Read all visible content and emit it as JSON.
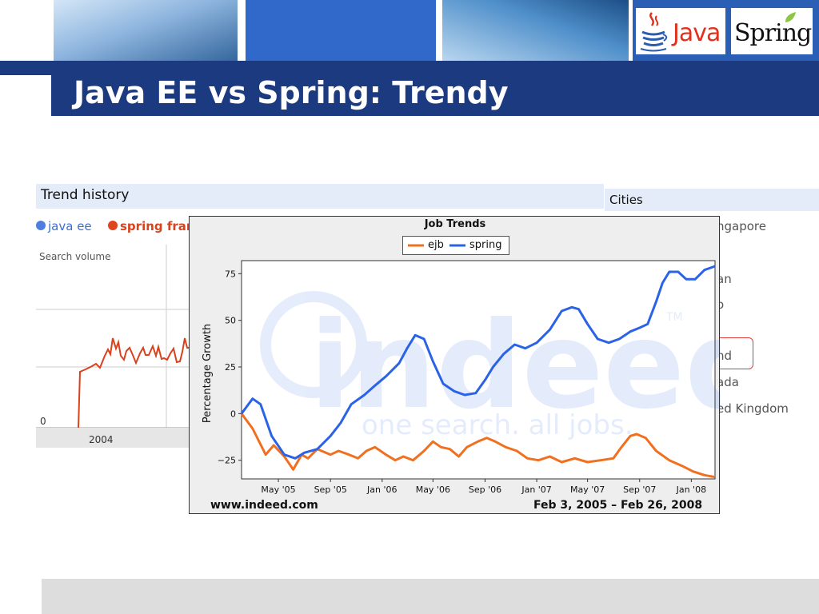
{
  "slide": {
    "title": "Java EE vs Spring: Trendy",
    "logos": {
      "java": "Java",
      "spring": "Spring"
    },
    "colors": {
      "title_bar": "#1c3a80",
      "accent_blue": "#3069c9",
      "footer": "#dddddd"
    }
  },
  "google_trends": {
    "header": "Trend history",
    "legend": [
      {
        "label": "java ee",
        "color": "#4c7fe0"
      },
      {
        "label": "spring fram",
        "color": "#e0451d"
      }
    ],
    "search_volume_label": "Search volume",
    "zero_label": "0",
    "year_label": "2004"
  },
  "cities_panel": {
    "header": "Cities",
    "visible_fragments": [
      "ngapore",
      "an",
      "o",
      "nd",
      "ada",
      "ed Kingdom"
    ]
  },
  "chart_data": {
    "type": "line",
    "title": "Job Trends",
    "xlabel": "",
    "ylabel": "Percentage Growth",
    "ylim": [
      -35,
      82
    ],
    "yticks": [
      75,
      50,
      25,
      0,
      -25
    ],
    "x_tick_labels": [
      "May '05",
      "Sep '05",
      "Jan '06",
      "May '06",
      "Sep '06",
      "Jan '07",
      "May '07",
      "Sep '07",
      "Jan '08"
    ],
    "x_tick_dates": [
      "2005-05-01",
      "2005-09-01",
      "2006-01-01",
      "2006-05-01",
      "2006-09-01",
      "2007-01-01",
      "2007-05-01",
      "2007-09-01",
      "2008-01-01"
    ],
    "xlim": [
      "2005-02-03",
      "2008-02-26"
    ],
    "legend_position": "top-center",
    "series": [
      {
        "name": "ejb",
        "color": "#f07020",
        "x": [
          "2005-02-03",
          "2005-03-01",
          "2005-04-01",
          "2005-04-20",
          "2005-05-15",
          "2005-06-05",
          "2005-06-25",
          "2005-07-10",
          "2005-08-01",
          "2005-09-01",
          "2005-09-20",
          "2005-10-15",
          "2005-11-05",
          "2005-11-25",
          "2005-12-15",
          "2006-01-10",
          "2006-02-01",
          "2006-02-20",
          "2006-03-15",
          "2006-04-10",
          "2006-05-01",
          "2006-05-20",
          "2006-06-10",
          "2006-07-01",
          "2006-07-20",
          "2006-08-15",
          "2006-09-05",
          "2006-09-25",
          "2006-10-20",
          "2006-11-15",
          "2006-12-10",
          "2007-01-05",
          "2007-02-01",
          "2007-03-01",
          "2007-04-01",
          "2007-05-01",
          "2007-06-01",
          "2007-07-01",
          "2007-07-20",
          "2007-08-10",
          "2007-08-25",
          "2007-09-15",
          "2007-10-10",
          "2007-11-10",
          "2007-12-10",
          "2008-01-05",
          "2008-02-01",
          "2008-02-26"
        ],
        "y": [
          0,
          -8,
          -22,
          -17,
          -23,
          -30,
          -22,
          -24,
          -19,
          -22,
          -20,
          -22,
          -24,
          -20,
          -18,
          -22,
          -25,
          -23,
          -25,
          -20,
          -15,
          -18,
          -19,
          -23,
          -18,
          -15,
          -13,
          -15,
          -18,
          -20,
          -24,
          -25,
          -23,
          -26,
          -24,
          -26,
          -25,
          -24,
          -18,
          -12,
          -11,
          -13,
          -20,
          -25,
          -28,
          -31,
          -33,
          -34
        ]
      },
      {
        "name": "spring",
        "color": "#2a63e6",
        "x": [
          "2005-02-03",
          "2005-03-01",
          "2005-03-20",
          "2005-04-15",
          "2005-05-15",
          "2005-06-10",
          "2005-07-01",
          "2005-08-01",
          "2005-09-01",
          "2005-09-25",
          "2005-10-20",
          "2005-11-20",
          "2005-12-15",
          "2006-01-10",
          "2006-02-10",
          "2006-03-01",
          "2006-03-20",
          "2006-04-10",
          "2006-05-01",
          "2006-05-25",
          "2006-06-20",
          "2006-07-15",
          "2006-08-10",
          "2006-09-01",
          "2006-09-20",
          "2006-10-15",
          "2006-11-10",
          "2006-12-05",
          "2007-01-01",
          "2007-02-01",
          "2007-03-01",
          "2007-03-25",
          "2007-04-10",
          "2007-05-01",
          "2007-05-25",
          "2007-06-20",
          "2007-07-15",
          "2007-08-10",
          "2007-09-01",
          "2007-09-20",
          "2007-10-10",
          "2007-10-25",
          "2007-11-10",
          "2007-12-01",
          "2007-12-20",
          "2008-01-10",
          "2008-02-01",
          "2008-02-26"
        ],
        "y": [
          0,
          8,
          5,
          -12,
          -22,
          -24,
          -21,
          -19,
          -12,
          -5,
          5,
          10,
          15,
          20,
          27,
          35,
          42,
          40,
          28,
          16,
          12,
          10,
          11,
          18,
          25,
          32,
          37,
          35,
          38,
          45,
          55,
          57,
          56,
          48,
          40,
          38,
          40,
          44,
          46,
          48,
          60,
          70,
          76,
          76,
          72,
          72,
          77,
          79
        ]
      }
    ]
  },
  "indeed": {
    "watermark_brand": "indeed",
    "watermark_tagline": "one search. all jobs.",
    "watermark_tm": "TM",
    "footer_left": "www.indeed.com",
    "footer_right": "Feb 3, 2005 – Feb 26, 2008"
  }
}
